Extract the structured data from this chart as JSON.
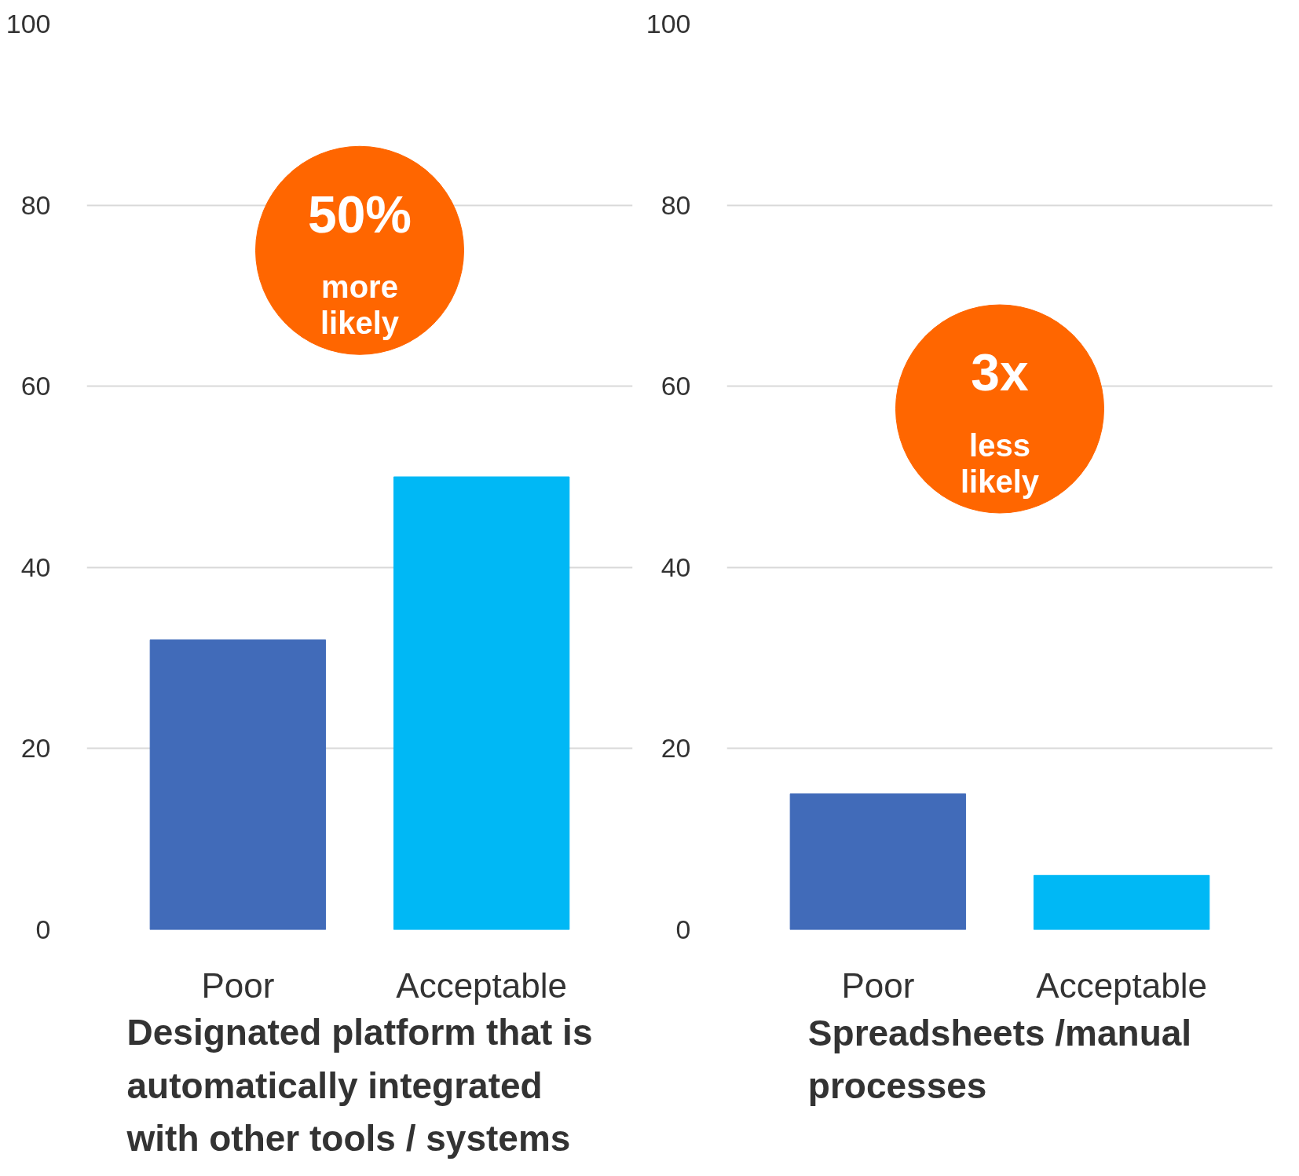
{
  "chart_data": [
    {
      "type": "bar",
      "title": "Designated platform that is automatically integrated with other tools / systems",
      "categories": [
        "Poor",
        "Acceptable"
      ],
      "values": [
        32,
        50
      ],
      "colors": [
        "#416bb9",
        "#00b8f5"
      ],
      "ylim": [
        0,
        100
      ],
      "yticks": [
        0,
        20,
        40,
        60,
        80,
        100
      ],
      "grid": "y",
      "annotations": [
        "50%",
        "more\nlikely"
      ]
    },
    {
      "type": "bar",
      "title": "Spreadsheets /manual processes",
      "categories": [
        "Poor",
        "Acceptable"
      ],
      "values": [
        15,
        6
      ],
      "colors": [
        "#416bb9",
        "#00b8f5"
      ],
      "ylim": [
        0,
        100
      ],
      "yticks": [
        0,
        20,
        40,
        60,
        80,
        100
      ],
      "grid": "y",
      "annotations": [
        "3x",
        "less\nlikely"
      ]
    }
  ]
}
